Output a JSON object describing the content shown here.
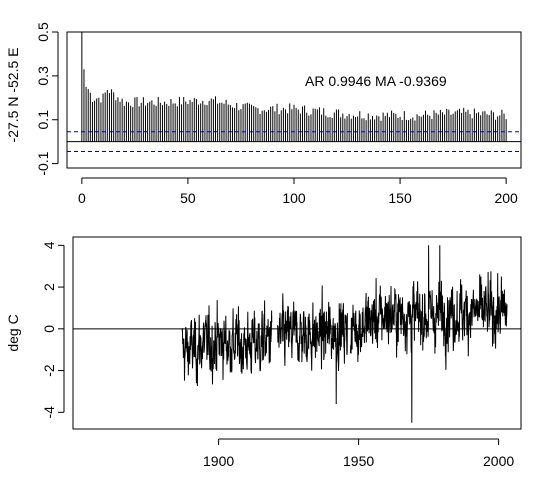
{
  "chart_data": [
    {
      "type": "bar",
      "ylabel": "-27.5 N -52.5 E",
      "annotation": "AR 0.9946  MA -0.9369",
      "xlim": [
        -7,
        207
      ],
      "ylim": [
        -0.12,
        0.5
      ],
      "x_ticks": [
        "0",
        "50",
        "100",
        "150",
        "200"
      ],
      "y_ticks": [
        "-0.1",
        "0.1",
        "0.3",
        "0.5"
      ],
      "reference_lines": [
        0
      ],
      "confidence_band": [
        -0.045,
        0.045
      ],
      "confidence_band_color": "#0000cc",
      "lags": {
        "start": 0,
        "end": 200
      },
      "values_at_lags": {
        "0": 1.0,
        "1": 0.33,
        "2": 0.25,
        "3": 0.24,
        "5": 0.2,
        "10": 0.2,
        "12": 0.24,
        "20": 0.18,
        "40": 0.18,
        "60": 0.19,
        "80": 0.15,
        "100": 0.15,
        "120": 0.13,
        "140": 0.12,
        "160": 0.12,
        "180": 0.13,
        "200": 0.12
      }
    },
    {
      "type": "line",
      "ylabel": "deg C",
      "xlim": [
        1848,
        2008
      ],
      "ylim": [
        -4.8,
        4.4
      ],
      "x_ticks": [
        "1900",
        "1950",
        "2000"
      ],
      "y_ticks": [
        "-4",
        "-2",
        "0",
        "2",
        "4"
      ],
      "reference_lines": [
        0
      ],
      "series_range": [
        1887,
        2003
      ],
      "gap_years": [
        [
          1919,
          1921
        ],
        [
          1946,
          1947
        ]
      ],
      "mean_by_decade": [
        {
          "year": 1890,
          "value": -1.0
        },
        {
          "year": 1900,
          "value": -0.6
        },
        {
          "year": 1910,
          "value": -0.8
        },
        {
          "year": 1925,
          "value": -0.3
        },
        {
          "year": 1935,
          "value": -0.3
        },
        {
          "year": 1950,
          "value": 0.1
        },
        {
          "year": 1960,
          "value": 0.7
        },
        {
          "year": 1970,
          "value": 0.6
        },
        {
          "year": 1980,
          "value": 0.7
        },
        {
          "year": 1990,
          "value": 0.8
        },
        {
          "year": 2000,
          "value": 0.8
        }
      ],
      "extremes": [
        {
          "year": 1969,
          "value": -4.5
        },
        {
          "year": 1975,
          "value": 4.0
        },
        {
          "year": 1979,
          "value": 4.0
        },
        {
          "year": 1942,
          "value": -3.6
        }
      ]
    }
  ]
}
